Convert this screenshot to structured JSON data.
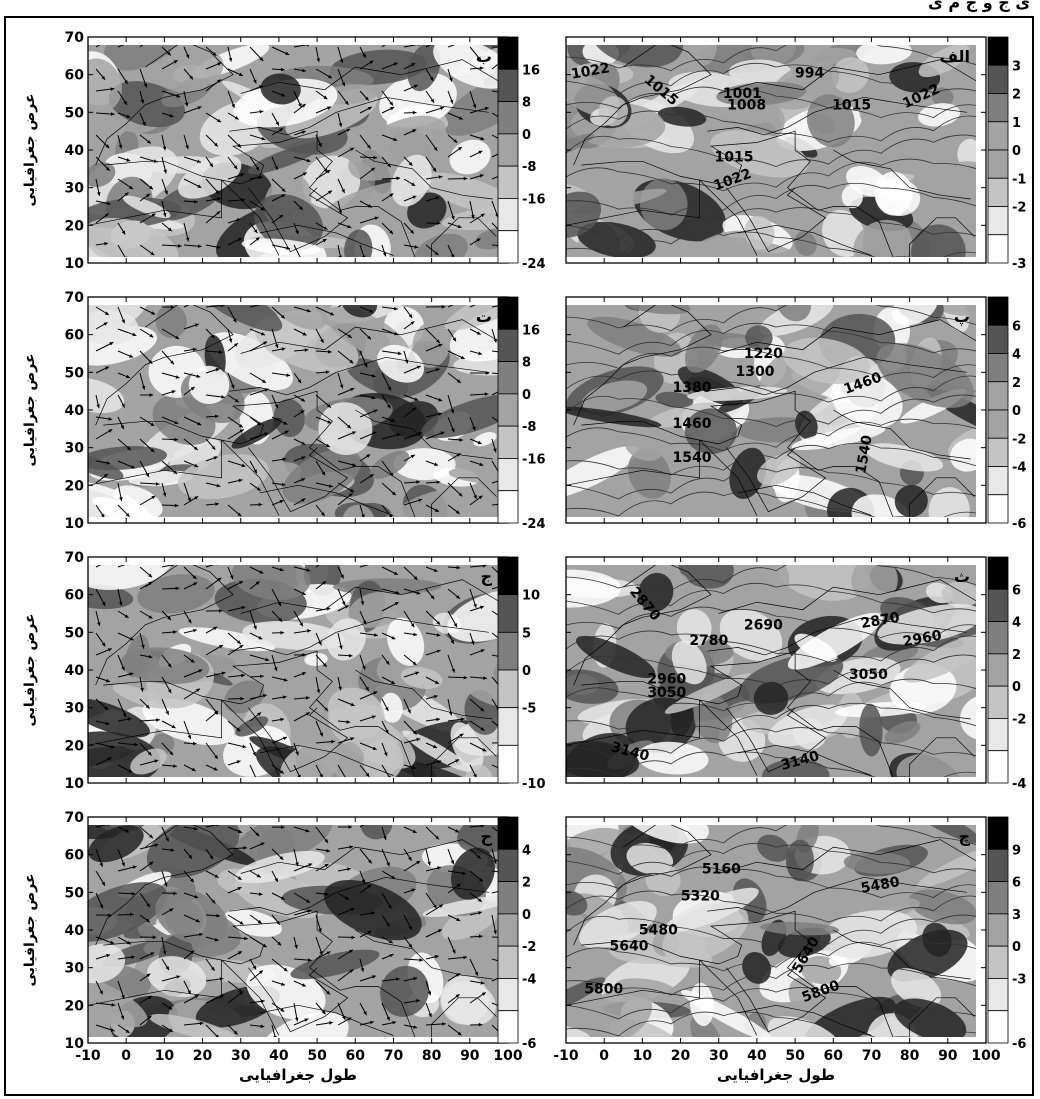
{
  "header": {
    "text": "ی ج و ج م ی"
  },
  "x_axis": {
    "label": "طول جغرافیایی",
    "ticks": [
      "-10",
      "0",
      "10",
      "20",
      "30",
      "40",
      "50",
      "60",
      "70",
      "80",
      "90",
      "100"
    ]
  },
  "y_axis": {
    "label": "عرض جغرافیایی",
    "ticks": [
      "10",
      "20",
      "30",
      "40",
      "50",
      "60",
      "70"
    ]
  },
  "colors": {
    "c0": "#ffffff",
    "c1": "#e8e8e8",
    "c2": "#c4c4c4",
    "c3": "#a3a3a3",
    "c4": "#7f7f7f",
    "c5": "#555555",
    "c6": "#232323",
    "c7": "#000000"
  },
  "panels": [
    {
      "id": "alef",
      "label": "الف",
      "col": "right",
      "row": 0,
      "colorbar": [
        "3",
        "2",
        "1",
        "0",
        "-1",
        "-2",
        "-3"
      ],
      "contours": [
        "1022",
        "1015",
        "1001",
        "1008",
        "994",
        "1015",
        "1022",
        "1015",
        "1022"
      ]
    },
    {
      "id": "be",
      "label": "ب",
      "col": "left",
      "row": 0,
      "colorbar": [
        "16",
        "8",
        "0",
        "-8",
        "-16",
        "-24"
      ],
      "contours": []
    },
    {
      "id": "pe",
      "label": "پ",
      "col": "right",
      "row": 1,
      "colorbar": [
        "6",
        "4",
        "2",
        "0",
        "-2",
        "-4",
        "-6"
      ],
      "contours": [
        "1220",
        "1300",
        "1380",
        "1460",
        "1460",
        "1540",
        "1540"
      ]
    },
    {
      "id": "te",
      "label": "ت",
      "col": "left",
      "row": 1,
      "colorbar": [
        "16",
        "8",
        "0",
        "-8",
        "-16",
        "-24"
      ],
      "contours": []
    },
    {
      "id": "se",
      "label": "ث",
      "col": "right",
      "row": 2,
      "colorbar": [
        "6",
        "4",
        "2",
        "0",
        "-2",
        "-4"
      ],
      "contours": [
        "2870",
        "2690",
        "2780",
        "2870",
        "2960",
        "2960",
        "3050",
        "3050",
        "3140",
        "3140"
      ]
    },
    {
      "id": "jim",
      "label": "ج",
      "col": "left",
      "row": 2,
      "colorbar": [
        "10",
        "5",
        "0",
        "-5",
        "-10"
      ],
      "contours": []
    },
    {
      "id": "che",
      "label": "چ",
      "col": "right",
      "row": 3,
      "colorbar": [
        "9",
        "6",
        "3",
        "0",
        "-3",
        "-6"
      ],
      "contours": [
        "5160",
        "5480",
        "5320",
        "5480",
        "5640",
        "5640",
        "5800",
        "5800"
      ]
    },
    {
      "id": "he",
      "label": "ح",
      "col": "left",
      "row": 3,
      "colorbar": [
        "4",
        "2",
        "0",
        "-2",
        "-4",
        "-6"
      ],
      "contours": []
    }
  ]
}
